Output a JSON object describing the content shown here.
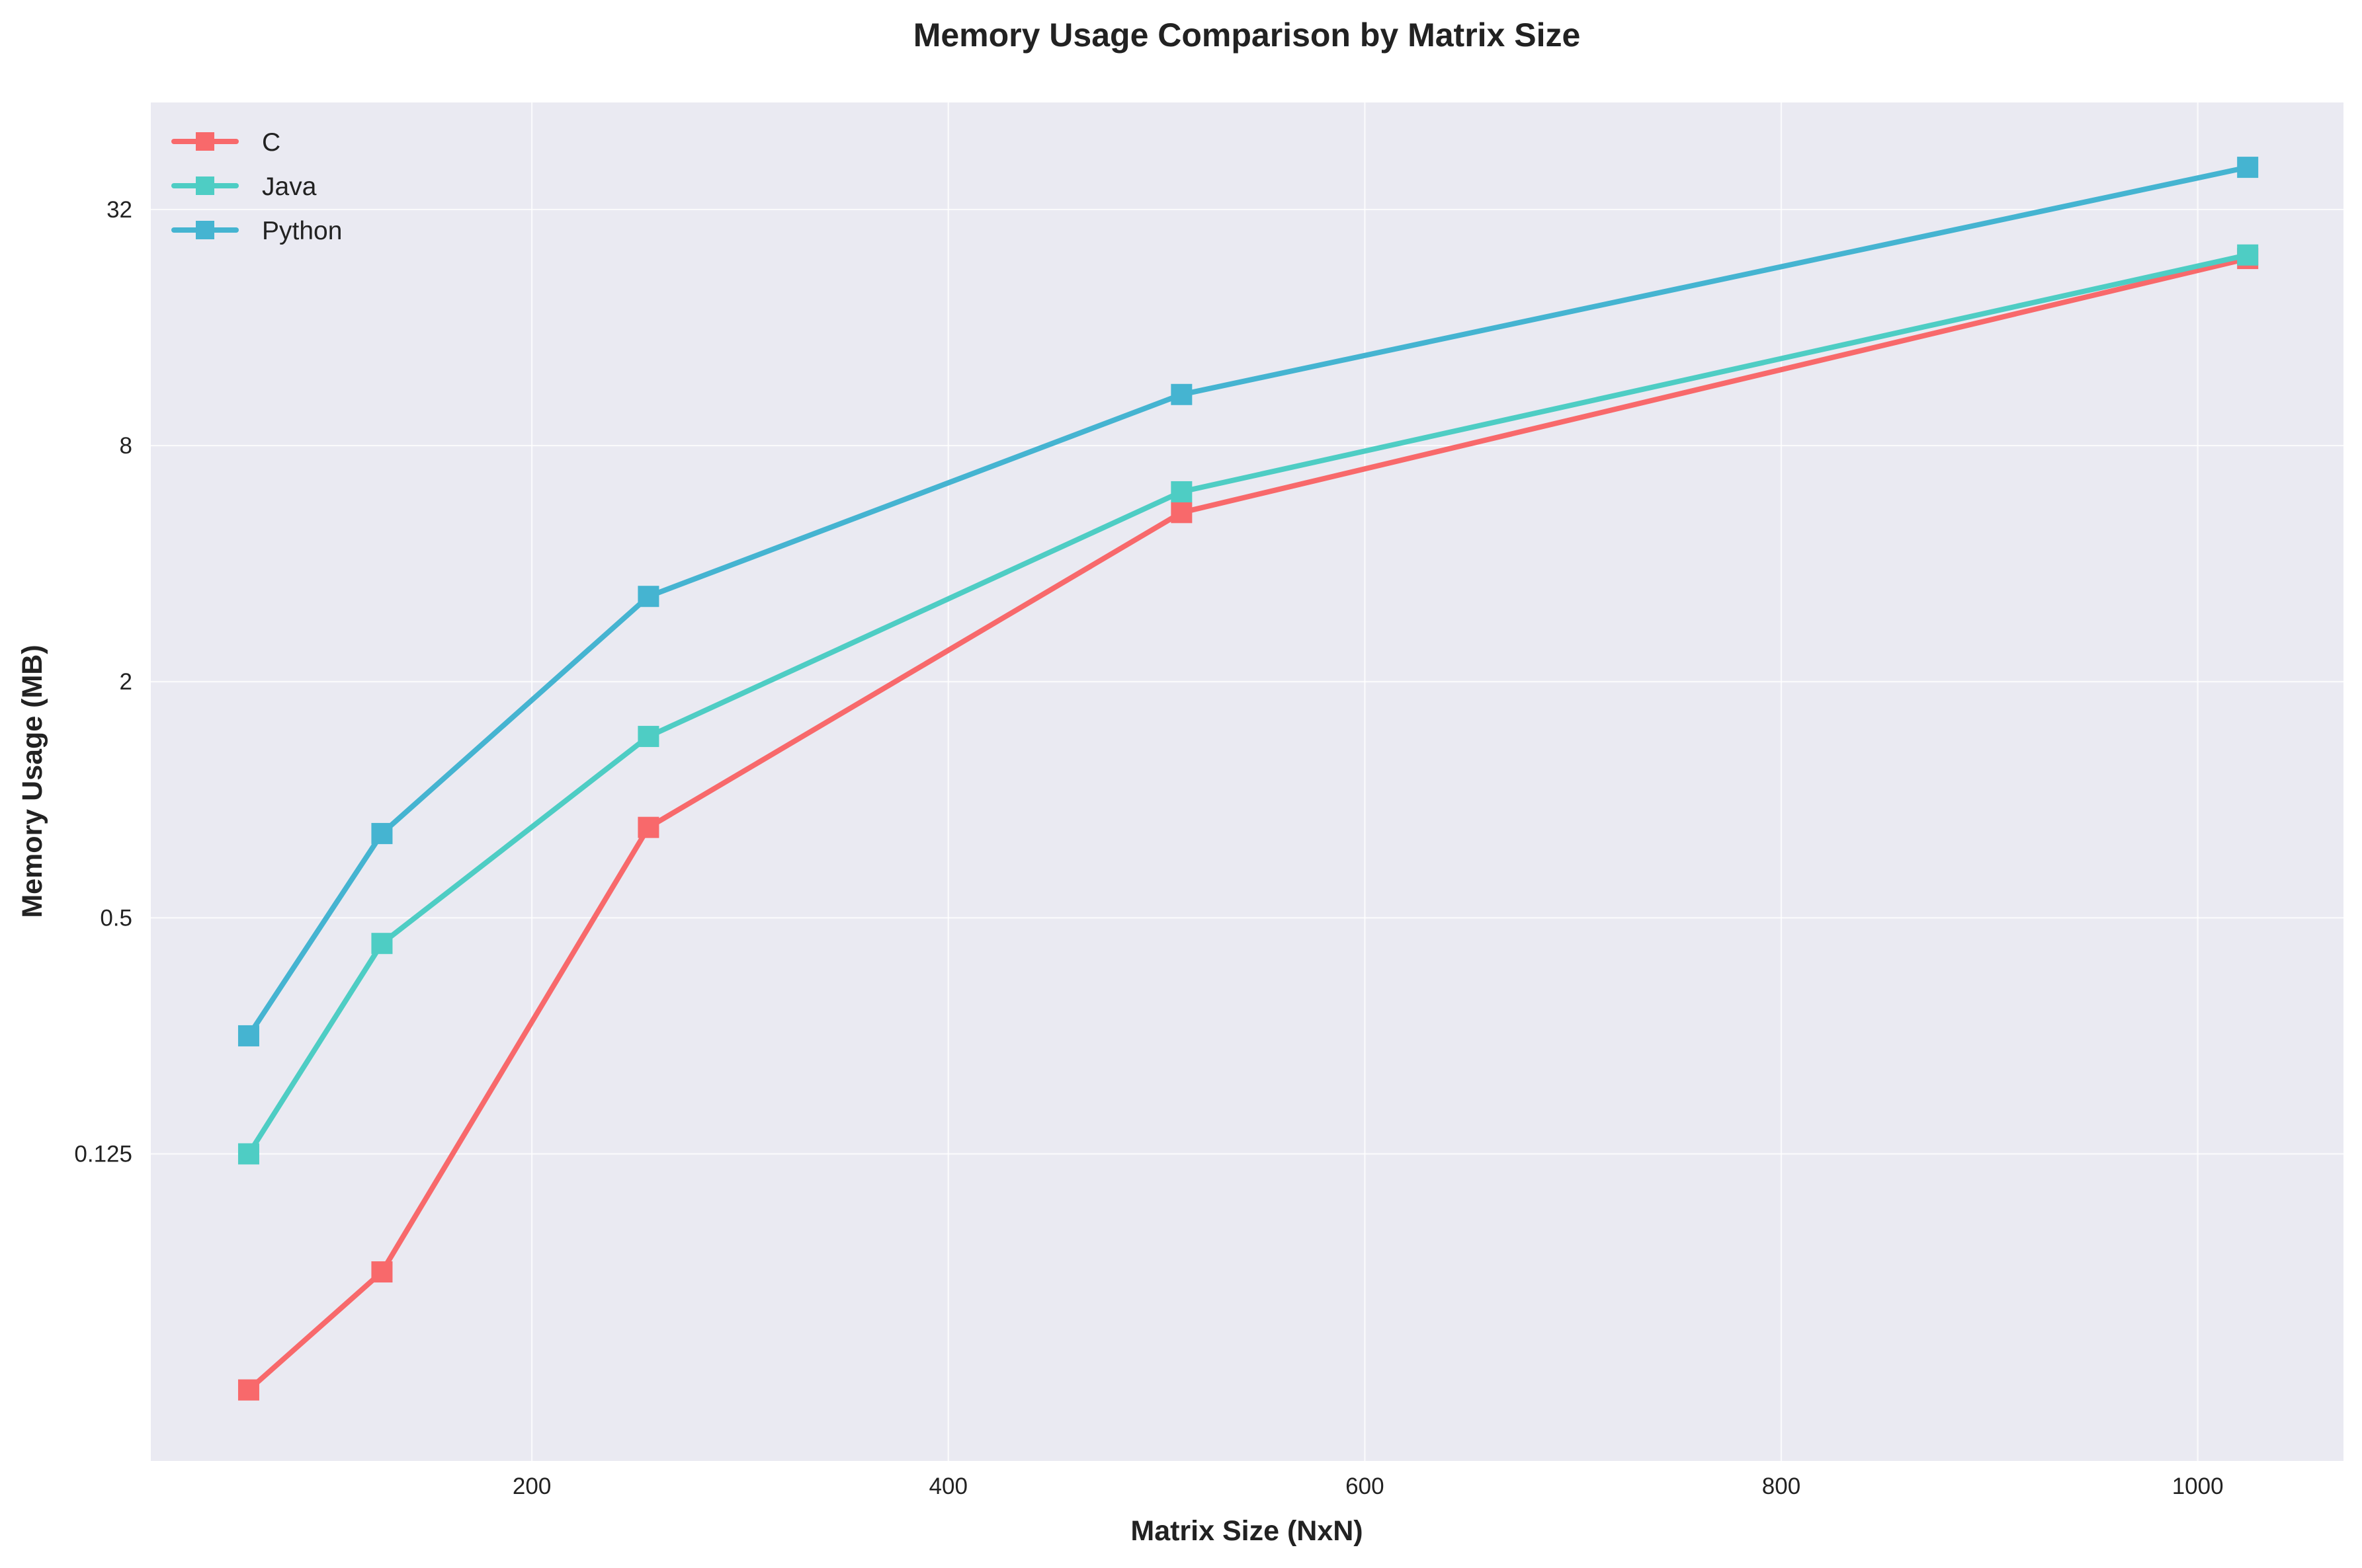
{
  "chart_data": {
    "type": "line",
    "title": "Memory Usage Comparison by Matrix Size",
    "xlabel": "Matrix Size (NxN)",
    "ylabel": "Memory Usage (MB)",
    "x": [
      64,
      128,
      256,
      512,
      1024
    ],
    "series": [
      {
        "name": "C",
        "color": "#f8696b",
        "values": [
          0.03125,
          0.0625,
          0.85,
          5.4,
          24
        ]
      },
      {
        "name": "Java",
        "color": "#4ecdc4",
        "values": [
          0.125,
          0.43,
          1.45,
          6.1,
          24.5
        ]
      },
      {
        "name": "Python",
        "color": "#45b4d1",
        "values": [
          0.25,
          0.82,
          3.3,
          10.8,
          41
        ]
      }
    ],
    "xlim": [
      17,
      1070
    ],
    "ylim": [
      0.0206,
      60
    ],
    "yscale": "log2",
    "xticks": [
      200,
      400,
      600,
      800,
      1000
    ],
    "yticks": [
      0.125,
      0.5,
      2,
      8,
      32
    ],
    "ytick_labels": [
      "0.125",
      "0.5",
      "2",
      "8",
      "32"
    ],
    "marker": "square",
    "grid": true,
    "legend_position": "top-left"
  }
}
